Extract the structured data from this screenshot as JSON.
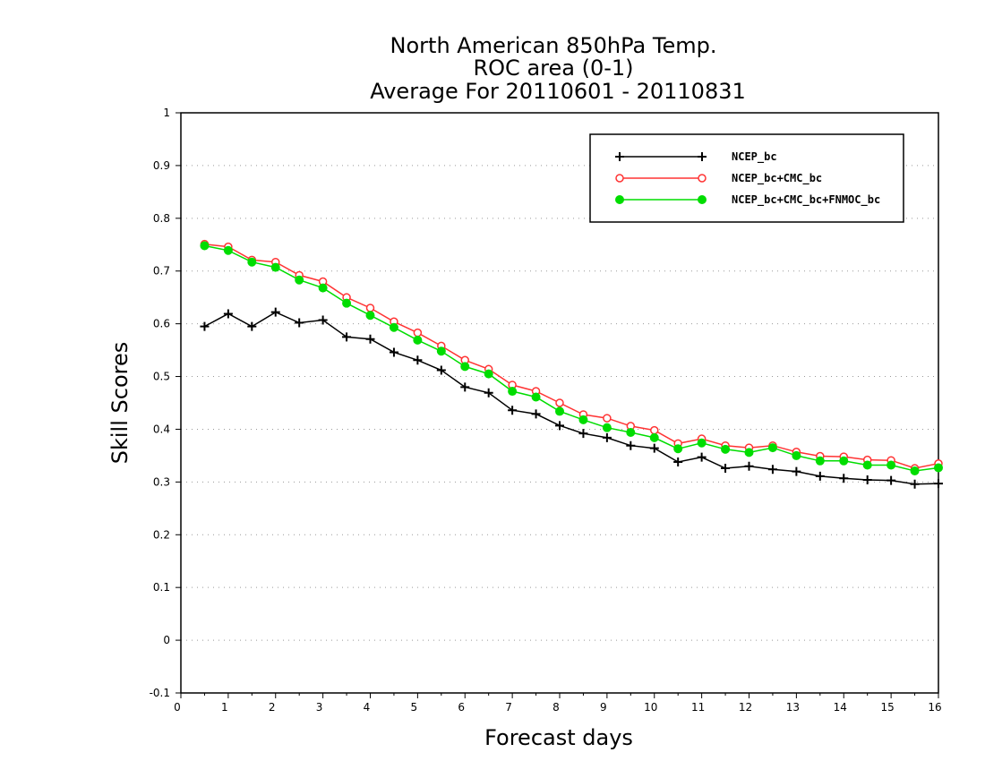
{
  "chart_data": {
    "type": "line",
    "title": [
      "North American 850hPa Temp.",
      "ROC area (0-1)",
      "Average For 20110601 - 20110831"
    ],
    "xlabel": "Forecast days",
    "ylabel": "Skill Scores",
    "xlim": [
      0,
      16
    ],
    "ylim": [
      -0.1,
      1
    ],
    "xticks": [
      "0",
      "1",
      "2",
      "3",
      "4",
      "5",
      "6",
      "7",
      "8",
      "9",
      "10",
      "11",
      "12",
      "13",
      "14",
      "15",
      "16"
    ],
    "yticks": [
      "-0.1",
      "0",
      "0.1",
      "0.2",
      "0.3",
      "0.4",
      "0.5",
      "0.6",
      "0.7",
      "0.8",
      "0.9",
      "1"
    ],
    "grid": "horizontal dotted",
    "legend_position": "top-right",
    "x": [
      0.5,
      1,
      1.5,
      2,
      2.5,
      3,
      3.5,
      4,
      4.5,
      5,
      5.5,
      6,
      6.5,
      7,
      7.5,
      8,
      8.5,
      9,
      9.5,
      10,
      10.5,
      11,
      11.5,
      12,
      12.5,
      13,
      13.5,
      14,
      14.5,
      15,
      15.5,
      16
    ],
    "series": [
      {
        "name": "NCEP_bc",
        "color": "#000000",
        "marker": "plus",
        "values": [
          0.595,
          0.619,
          0.595,
          0.622,
          0.602,
          0.607,
          0.575,
          0.571,
          0.546,
          0.531,
          0.512,
          0.48,
          0.469,
          0.436,
          0.429,
          0.407,
          0.392,
          0.384,
          0.369,
          0.364,
          0.338,
          0.347,
          0.326,
          0.33,
          0.324,
          0.32,
          0.311,
          0.307,
          0.304,
          0.303,
          0.296,
          0.297
        ]
      },
      {
        "name": "NCEP_bc+CMC_bc",
        "color": "#ff3333",
        "marker": "open-circle",
        "values": [
          0.751,
          0.746,
          0.721,
          0.717,
          0.692,
          0.68,
          0.65,
          0.63,
          0.604,
          0.583,
          0.558,
          0.531,
          0.514,
          0.484,
          0.472,
          0.45,
          0.428,
          0.421,
          0.406,
          0.398,
          0.373,
          0.382,
          0.369,
          0.365,
          0.369,
          0.357,
          0.349,
          0.348,
          0.342,
          0.341,
          0.326,
          0.335
        ]
      },
      {
        "name": "NCEP_bc+CMC_bc+FNMOC_bc",
        "color": "#00dd00",
        "marker": "filled-circle",
        "values": [
          0.748,
          0.739,
          0.717,
          0.707,
          0.683,
          0.668,
          0.639,
          0.616,
          0.593,
          0.569,
          0.548,
          0.519,
          0.505,
          0.472,
          0.461,
          0.434,
          0.418,
          0.403,
          0.394,
          0.384,
          0.363,
          0.374,
          0.362,
          0.356,
          0.365,
          0.35,
          0.34,
          0.34,
          0.332,
          0.332,
          0.321,
          0.327
        ]
      }
    ]
  }
}
